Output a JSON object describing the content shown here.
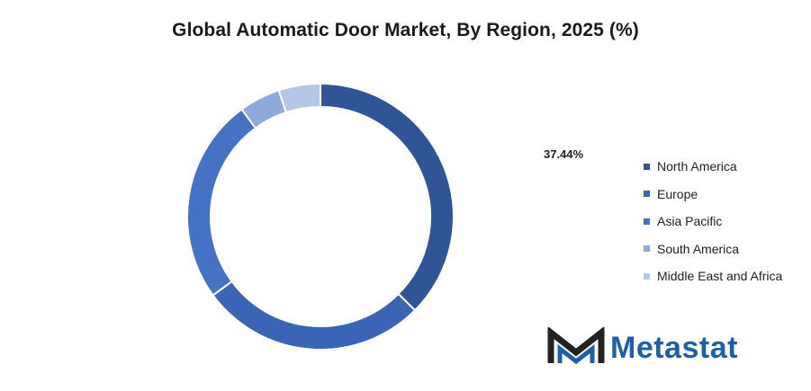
{
  "chart_data": {
    "type": "pie",
    "title": "Global Automatic Door Market, By Region, 2025 (%)",
    "categories": [
      "North America",
      "Europe",
      "Asia Pacific",
      "South America",
      "Middle East and Africa"
    ],
    "values": [
      37.44,
      27.5,
      25.0,
      5.0,
      5.06
    ],
    "colors": [
      "#2f5597",
      "#3a64b5",
      "#4472c4",
      "#8eaadb",
      "#b4c7e7"
    ],
    "donut": true,
    "legend_position": "right",
    "annotation": "37.44%"
  },
  "brand": {
    "name": "Metastat",
    "color": "#1f5fa8",
    "icon": "metastat-logo-icon"
  }
}
